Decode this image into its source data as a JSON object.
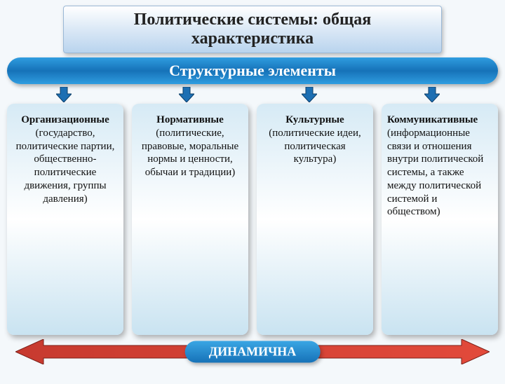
{
  "type": "infographic",
  "background_color": "#f4f8fb",
  "title": {
    "text": "Политические системы: общая характеристика",
    "fontsize": 24,
    "color": "#222222",
    "bg_gradient_top": "#ffffff",
    "bg_gradient_mid": "#d7e6f5",
    "bg_gradient_bottom": "#b9d4ee",
    "border_color": "#9ab8d6"
  },
  "subtitle": {
    "text": "Структурные элементы",
    "fontsize": 22,
    "text_color": "#ffffff",
    "gradient_top": "#2f9de0",
    "gradient_mid": "#1672b8",
    "gradient_bottom": "#2f9de0"
  },
  "down_arrows": {
    "fill": "#1d6fb3",
    "stroke": "#0d3f6a",
    "positions_pct": [
      11.5,
      36.5,
      61.5,
      86.5
    ]
  },
  "columns": {
    "bg_gradient_top": "#d6eaf5",
    "bg_gradient_mid": "#ffffff",
    "bg_gradient_bottom": "#c9e3f1",
    "fontsize": 15,
    "items": [
      {
        "head": "Организационные",
        "body": " (государство, политические партии, общественно-политические движения, группы давления)",
        "align": "center"
      },
      {
        "head": "Нормативные",
        "body": " (политические, правовые, моральные нормы и ценности, обычаи и традиции)",
        "align": "center"
      },
      {
        "head": "Культурные",
        "body": " (политические идеи, политическая культура)",
        "align": "center"
      },
      {
        "head": "Коммуникативные",
        "body": " (информационные связи и отношения внутри политической системы, а также между политической системой и обществом)",
        "align": "left"
      }
    ]
  },
  "dynamic_band": {
    "arrow_fill_left": "#c73a2f",
    "arrow_fill_right": "#e24a3b",
    "arrow_stroke": "#7a1f18",
    "pill_gradient_top": "#3aa6e4",
    "pill_gradient_bottom": "#1672b8",
    "label": "ДИНАМИЧНА",
    "label_color": "#ffffff",
    "label_fontsize": 18
  }
}
